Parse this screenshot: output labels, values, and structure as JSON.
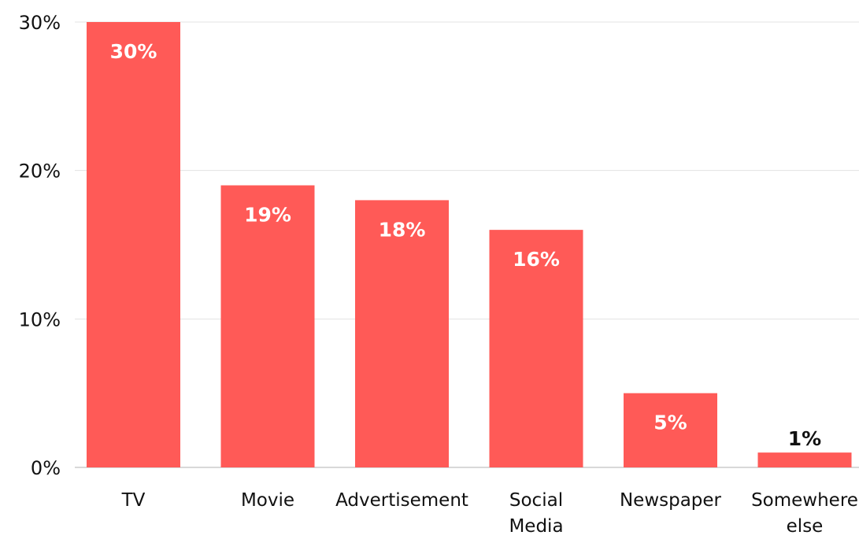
{
  "chart_data": {
    "type": "bar",
    "categories": [
      [
        "TV"
      ],
      [
        "Movie"
      ],
      [
        "Advertisement"
      ],
      [
        "Social",
        "Media"
      ],
      [
        "Newspaper"
      ],
      [
        "Somewhere",
        "else"
      ]
    ],
    "values": [
      30,
      19,
      18,
      16,
      5,
      1
    ],
    "value_labels": [
      "30%",
      "19%",
      "18%",
      "16%",
      "5%",
      "1%"
    ],
    "ylim": [
      0,
      30
    ],
    "yticks": [
      0,
      10,
      20,
      30
    ],
    "ytick_labels": [
      "0%",
      "10%",
      "20%",
      "30%"
    ],
    "grid": true,
    "colors": {
      "bar": "#FF5A57",
      "label_inside": "#ffffff",
      "label_outside": "#111111",
      "grid": "#e3e3e3",
      "axis": "#cccccc"
    }
  }
}
